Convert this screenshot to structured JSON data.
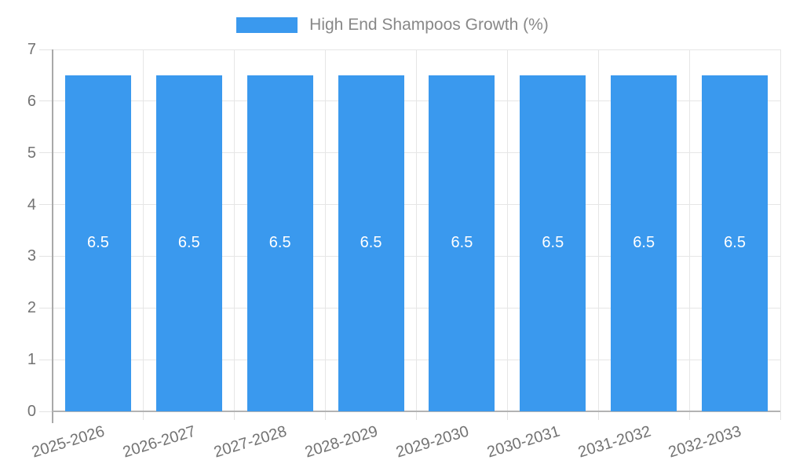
{
  "legend": {
    "label": "High End Shampoos Growth (%)",
    "swatch_color": "#3a99ee"
  },
  "chart_data": {
    "type": "bar",
    "title": "High End Shampoos Growth (%)",
    "categories": [
      "2025-2026",
      "2026-2027",
      "2027-2028",
      "2028-2029",
      "2029-2030",
      "2030-2031",
      "2031-2032",
      "2032-2033"
    ],
    "values": [
      6.5,
      6.5,
      6.5,
      6.5,
      6.5,
      6.5,
      6.5,
      6.5
    ],
    "bar_value_labels": [
      "6.5",
      "6.5",
      "6.5",
      "6.5",
      "6.5",
      "6.5",
      "6.5",
      "6.5"
    ],
    "xlabel": "",
    "ylabel": "",
    "ylim": [
      0,
      7
    ],
    "yticks": [
      0,
      1,
      2,
      3,
      4,
      5,
      6,
      7
    ],
    "grid": true,
    "legend_position": "top",
    "bar_color": "#3a99ee",
    "value_label_color": "#ffffff",
    "grid_color": "#e6e6e6",
    "axis_color": "#a9a9a9",
    "baseline_color": "#b3b3b3",
    "tick_label_color": "#737373",
    "legend_text_color": "#888888"
  }
}
